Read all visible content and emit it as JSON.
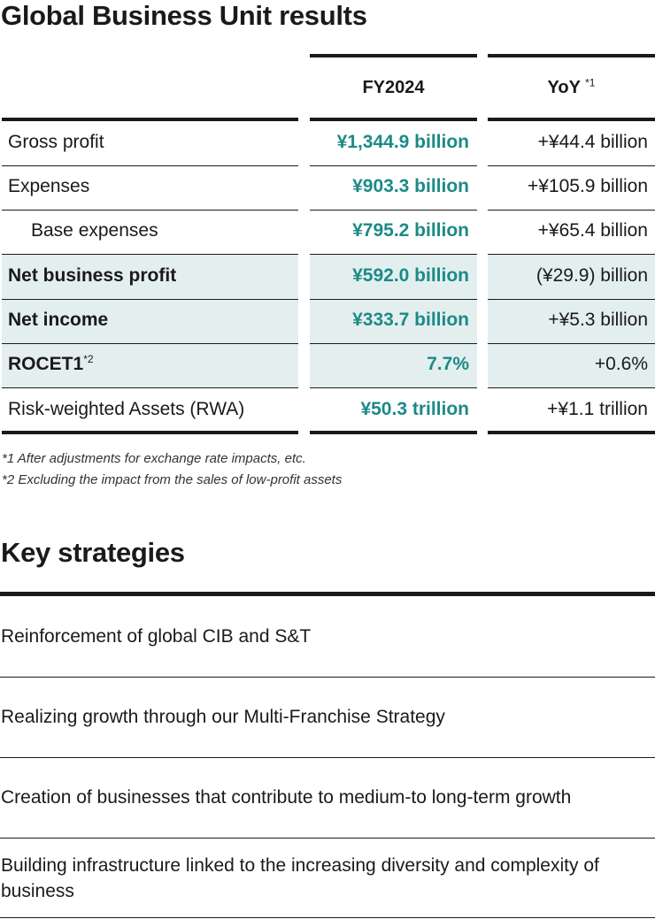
{
  "results": {
    "title": "Global Business Unit results",
    "columns": {
      "fy": "FY2024",
      "yoy": "YoY",
      "yoy_note_mark": "*1"
    },
    "rows": [
      {
        "label": "Gross profit",
        "fy": "¥1,344.9 billion",
        "yoy": "+¥44.4 billion"
      },
      {
        "label": "Expenses",
        "fy": "¥903.3 billion",
        "yoy": "+¥105.9 billion"
      },
      {
        "label": "Base expenses",
        "fy": "¥795.2 billion",
        "yoy": "+¥65.4 billion"
      },
      {
        "label": "Net business profit",
        "fy": "¥592.0 billion",
        "yoy": "(¥29.9) billion"
      },
      {
        "label": "Net income",
        "fy": "¥333.7 billion",
        "yoy": "+¥5.3 billion"
      },
      {
        "label": "ROCET1",
        "label_note_mark": "*2",
        "fy": "7.7%",
        "yoy": "+0.6%"
      },
      {
        "label": "Risk-weighted Assets (RWA)",
        "fy": "¥50.3 trillion",
        "yoy": "+¥1.1 trillion"
      }
    ],
    "notes": [
      "*1 After adjustments for exchange rate impacts, etc.",
      "*2 Excluding the impact from the sales of low-profit assets"
    ]
  },
  "strategies": {
    "title": "Key strategies",
    "items": [
      "Reinforcement of global CIB and S&T",
      "Realizing growth through our Multi-Franchise Strategy",
      "Creation of businesses that contribute to medium-to long-term growth",
      "Building infrastructure linked to the increasing diversity and complexity of business"
    ]
  },
  "colors": {
    "accent_teal": "#1c8a86",
    "highlight_row_bg": "#e3efee",
    "rule": "#1a1a1a"
  }
}
